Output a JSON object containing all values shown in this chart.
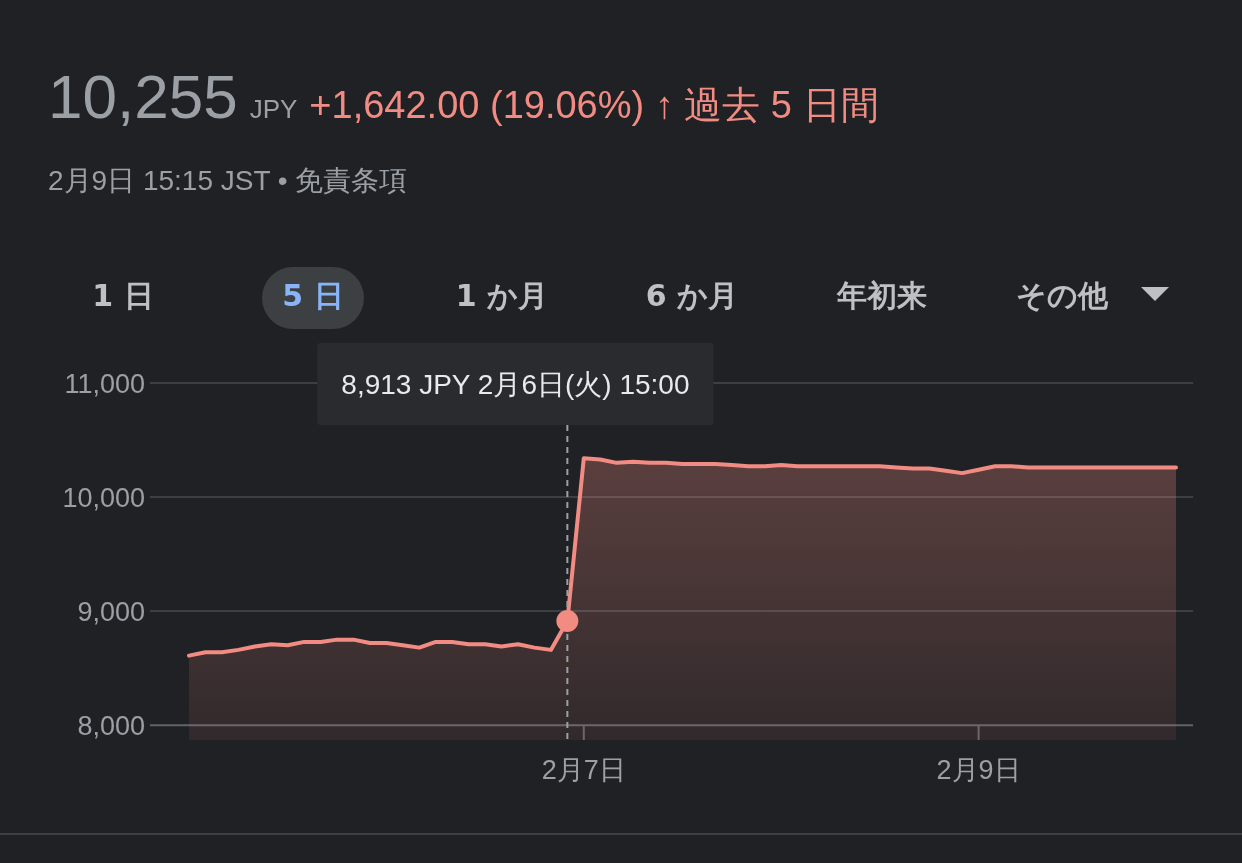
{
  "chart_data": {
    "type": "area",
    "title": "10,255 JPY",
    "subtitle": "+1,642.00 (19.06%) ↑ 過去 5 日間",
    "annotations": [
      "2月9日 15:15 JST • 免責条項",
      "1 日",
      "5 日",
      "1 か月",
      "6 か月",
      "年初来",
      "その他",
      "8,913 JPY  2月6日(火) 15:00"
    ],
    "categories": [
      null,
      null,
      null,
      null,
      null,
      null,
      null,
      null,
      null,
      null,
      null,
      null,
      null,
      null,
      null,
      null,
      null,
      null,
      null,
      null,
      null,
      null,
      null,
      null,
      "2月7日",
      null,
      null,
      null,
      null,
      null,
      null,
      null,
      null,
      null,
      null,
      null,
      null,
      null,
      null,
      null,
      null,
      null,
      null,
      null,
      null,
      null,
      null,
      null,
      "2月9日",
      null,
      null,
      null,
      null,
      null,
      null,
      null,
      null,
      null,
      null,
      null,
      null
    ],
    "values": [
      8610,
      8640,
      8640,
      8660,
      8690,
      8710,
      8700,
      8730,
      8730,
      8750,
      8750,
      8720,
      8720,
      8700,
      8680,
      8730,
      8730,
      8710,
      8710,
      8690,
      8710,
      8680,
      8660,
      8913,
      10340,
      10330,
      10300,
      10310,
      10300,
      10300,
      10290,
      10290,
      10290,
      10280,
      10270,
      10270,
      10280,
      10270,
      10270,
      10270,
      10270,
      10270,
      10270,
      10260,
      10250,
      10250,
      10230,
      10210,
      10240,
      10270,
      10270,
      10260,
      10260,
      10260,
      10260,
      10260,
      10260,
      10260,
      10260,
      10260,
      10260
    ],
    "color": "#f28b82",
    "ylim": [
      7870,
      11000
    ],
    "yticks": [
      {
        "value": 8000,
        "label": "8,000"
      },
      {
        "value": 9000,
        "label": "9,000"
      },
      {
        "value": 10000,
        "label": "10,000"
      },
      {
        "value": 11000,
        "label": "11,000"
      }
    ],
    "grid": "y",
    "marker": "none",
    "line_style": "solid"
  }
}
